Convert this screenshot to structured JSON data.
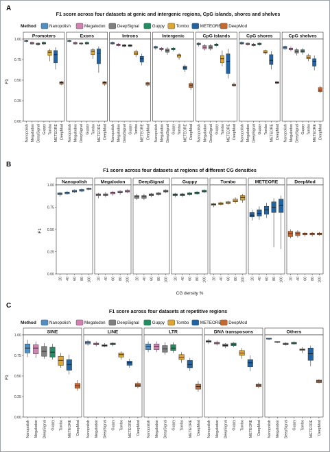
{
  "colors": {
    "Nanopolish": "#4d8fc7",
    "Megalodon": "#d57fb2",
    "DeepSignal": "#808080",
    "Guppy": "#1f8f63",
    "Tombo": "#e0a52a",
    "METEORE": "#1f64a4",
    "DeepMod": "#c8692b"
  },
  "legend": {
    "title": "Method",
    "items": [
      "Nanopolish",
      "Megalodon",
      "DeepSignal",
      "Guppy",
      "Tombo",
      "METEORE",
      "DeepMod"
    ]
  },
  "chart_data": [
    {
      "panel": "A",
      "type": "box",
      "title": "F1 score across four datasets at genic and intergenic regions, CpG islands, shores and shelves",
      "ylabel": "F1",
      "ylim": [
        0,
        1.0
      ],
      "yticks": [
        "0.00",
        "0.25",
        "0.50",
        "0.75",
        "1.00"
      ],
      "categories": [
        "Nanopolish",
        "Megalodon",
        "DeepSignal",
        "Guppy",
        "Tombo",
        "METEORE",
        "DeepMod"
      ],
      "facets": [
        {
          "name": "Promoters",
          "boxes": [
            [
              0.96,
              0.97,
              0.98,
              0.98,
              0.99
            ],
            [
              0.93,
              0.94,
              0.95,
              0.96,
              0.97
            ],
            [
              0.92,
              0.93,
              0.94,
              0.95,
              0.96
            ],
            [
              0.93,
              0.94,
              0.95,
              0.96,
              0.97
            ],
            [
              0.73,
              0.8,
              0.84,
              0.86,
              0.88
            ],
            [
              0.63,
              0.71,
              0.81,
              0.86,
              0.9
            ],
            [
              0.44,
              0.45,
              0.47,
              0.48,
              0.49
            ]
          ]
        },
        {
          "name": "Exons",
          "boxes": [
            [
              0.96,
              0.97,
              0.98,
              0.98,
              0.99
            ],
            [
              0.93,
              0.94,
              0.95,
              0.96,
              0.97
            ],
            [
              0.93,
              0.94,
              0.95,
              0.95,
              0.96
            ],
            [
              0.93,
              0.94,
              0.95,
              0.96,
              0.97
            ],
            [
              0.76,
              0.81,
              0.85,
              0.87,
              0.89
            ],
            [
              0.59,
              0.7,
              0.83,
              0.88,
              0.91
            ],
            [
              0.43,
              0.45,
              0.47,
              0.48,
              0.49
            ]
          ]
        },
        {
          "name": "Introns",
          "boxes": [
            [
              0.93,
              0.94,
              0.95,
              0.96,
              0.97
            ],
            [
              0.91,
              0.92,
              0.93,
              0.94,
              0.95
            ],
            [
              0.9,
              0.91,
              0.92,
              0.93,
              0.94
            ],
            [
              0.9,
              0.91,
              0.92,
              0.93,
              0.94
            ],
            [
              0.78,
              0.81,
              0.83,
              0.85,
              0.87
            ],
            [
              0.68,
              0.72,
              0.76,
              0.79,
              0.82
            ],
            [
              0.42,
              0.44,
              0.46,
              0.47,
              0.48
            ]
          ]
        },
        {
          "name": "Intergenic",
          "boxes": [
            [
              0.87,
              0.89,
              0.9,
              0.91,
              0.92
            ],
            [
              0.85,
              0.87,
              0.88,
              0.89,
              0.9
            ],
            [
              0.81,
              0.84,
              0.86,
              0.88,
              0.9
            ],
            [
              0.85,
              0.87,
              0.88,
              0.89,
              0.9
            ],
            [
              0.75,
              0.78,
              0.8,
              0.81,
              0.83
            ],
            [
              0.6,
              0.63,
              0.65,
              0.67,
              0.69
            ],
            [
              0.38,
              0.41,
              0.44,
              0.46,
              0.48
            ]
          ]
        },
        {
          "name": "CpG islands",
          "boxes": [
            [
              0.91,
              0.93,
              0.94,
              0.95,
              0.96
            ],
            [
              0.86,
              0.88,
              0.9,
              0.92,
              0.94
            ],
            [
              0.86,
              0.88,
              0.9,
              0.92,
              0.94
            ],
            [
              0.91,
              0.92,
              0.93,
              0.94,
              0.95
            ],
            [
              0.67,
              0.71,
              0.76,
              0.8,
              0.86
            ],
            [
              0.52,
              0.58,
              0.73,
              0.82,
              0.88
            ],
            [
              0.42,
              0.43,
              0.44,
              0.45,
              0.47
            ]
          ]
        },
        {
          "name": "CpG shores",
          "boxes": [
            [
              0.93,
              0.94,
              0.95,
              0.96,
              0.97
            ],
            [
              0.92,
              0.93,
              0.94,
              0.95,
              0.96
            ],
            [
              0.91,
              0.92,
              0.93,
              0.94,
              0.95
            ],
            [
              0.92,
              0.93,
              0.94,
              0.95,
              0.96
            ],
            [
              0.81,
              0.83,
              0.84,
              0.86,
              0.87
            ],
            [
              0.63,
              0.69,
              0.74,
              0.81,
              0.85
            ],
            [
              0.45,
              0.46,
              0.47,
              0.48,
              0.49
            ]
          ]
        },
        {
          "name": "CpG shelves",
          "boxes": [
            [
              0.87,
              0.88,
              0.9,
              0.91,
              0.92
            ],
            [
              0.85,
              0.87,
              0.88,
              0.89,
              0.91
            ],
            [
              0.8,
              0.83,
              0.85,
              0.87,
              0.89
            ],
            [
              0.81,
              0.84,
              0.85,
              0.87,
              0.89
            ],
            [
              0.73,
              0.76,
              0.78,
              0.8,
              0.82
            ],
            [
              0.62,
              0.67,
              0.73,
              0.76,
              0.8
            ],
            [
              0.34,
              0.36,
              0.38,
              0.41,
              0.43
            ]
          ]
        }
      ]
    },
    {
      "panel": "B",
      "type": "box",
      "title": "F1 score across four datasets at regions of different CG densities",
      "ylabel": "F1",
      "xlabel": "CG density %",
      "ylim": [
        0,
        1.0
      ],
      "yticks": [
        "0.00",
        "0.25",
        "0.50",
        "0.75",
        "1.00"
      ],
      "categories": [
        "20",
        "40",
        "60",
        "80",
        "100"
      ],
      "facets": [
        {
          "name": "Nanopolish",
          "method": "Nanopolish",
          "boxes": [
            [
              0.87,
              0.89,
              0.9,
              0.91,
              0.92
            ],
            [
              0.89,
              0.9,
              0.91,
              0.92,
              0.93
            ],
            [
              0.91,
              0.92,
              0.93,
              0.94,
              0.95
            ],
            [
              0.92,
              0.93,
              0.94,
              0.95,
              0.96
            ],
            [
              0.94,
              0.95,
              0.96,
              0.96,
              0.97
            ]
          ]
        },
        {
          "name": "Megalodon",
          "method": "Megalodon",
          "boxes": [
            [
              0.85,
              0.88,
              0.89,
              0.9,
              0.91
            ],
            [
              0.86,
              0.88,
              0.89,
              0.9,
              0.92
            ],
            [
              0.88,
              0.9,
              0.91,
              0.92,
              0.93
            ],
            [
              0.89,
              0.91,
              0.92,
              0.93,
              0.94
            ],
            [
              0.91,
              0.92,
              0.93,
              0.94,
              0.95
            ]
          ]
        },
        {
          "name": "DeepSignal",
          "method": "DeepSignal",
          "boxes": [
            [
              0.83,
              0.85,
              0.87,
              0.88,
              0.9
            ],
            [
              0.83,
              0.85,
              0.87,
              0.88,
              0.9
            ],
            [
              0.86,
              0.88,
              0.89,
              0.9,
              0.91
            ],
            [
              0.88,
              0.89,
              0.9,
              0.91,
              0.92
            ],
            [
              0.91,
              0.92,
              0.93,
              0.94,
              0.95
            ]
          ]
        },
        {
          "name": "Guppy",
          "method": "Guppy",
          "boxes": [
            [
              0.86,
              0.88,
              0.89,
              0.9,
              0.91
            ],
            [
              0.86,
              0.88,
              0.89,
              0.9,
              0.91
            ],
            [
              0.88,
              0.89,
              0.9,
              0.91,
              0.92
            ],
            [
              0.89,
              0.9,
              0.91,
              0.92,
              0.93
            ],
            [
              0.91,
              0.92,
              0.93,
              0.94,
              0.95
            ]
          ]
        },
        {
          "name": "Tombo",
          "method": "Tombo",
          "boxes": [
            [
              0.75,
              0.77,
              0.78,
              0.79,
              0.8
            ],
            [
              0.77,
              0.78,
              0.79,
              0.8,
              0.81
            ],
            [
              0.78,
              0.79,
              0.8,
              0.81,
              0.82
            ],
            [
              0.79,
              0.81,
              0.82,
              0.84,
              0.86
            ],
            [
              0.8,
              0.83,
              0.86,
              0.88,
              0.9
            ]
          ]
        },
        {
          "name": "METEORE",
          "method": "METEORE",
          "boxes": [
            [
              0.6,
              0.64,
              0.66,
              0.69,
              0.72
            ],
            [
              0.61,
              0.65,
              0.68,
              0.72,
              0.76
            ],
            [
              0.63,
              0.67,
              0.72,
              0.76,
              0.8
            ],
            [
              0.3,
              0.69,
              0.75,
              0.81,
              0.85
            ],
            [
              0.28,
              0.69,
              0.77,
              0.84,
              0.88
            ]
          ]
        },
        {
          "name": "DeepMod",
          "method": "DeepMod",
          "boxes": [
            [
              0.4,
              0.42,
              0.45,
              0.48,
              0.5
            ],
            [
              0.41,
              0.43,
              0.45,
              0.47,
              0.49
            ],
            [
              0.42,
              0.44,
              0.45,
              0.46,
              0.47
            ],
            [
              0.42,
              0.44,
              0.45,
              0.46,
              0.47
            ],
            [
              0.43,
              0.44,
              0.45,
              0.46,
              0.47
            ]
          ]
        }
      ]
    },
    {
      "panel": "C",
      "type": "box",
      "title": "F1 score across four datasets at repetitive regions",
      "ylabel": "F1",
      "ylim": [
        0,
        1.0
      ],
      "yticks": [
        "0.00",
        "0.25",
        "0.50",
        "0.75",
        "1.00"
      ],
      "categories": [
        "Nanopolish",
        "Megalodon",
        "DeepSignal",
        "Guppy",
        "Tombo",
        "METEORE",
        "DeepMod"
      ],
      "facets": [
        {
          "name": "SINE",
          "boxes": [
            [
              0.73,
              0.78,
              0.84,
              0.89,
              0.94
            ],
            [
              0.72,
              0.77,
              0.84,
              0.88,
              0.92
            ],
            [
              0.71,
              0.74,
              0.8,
              0.86,
              0.9
            ],
            [
              0.7,
              0.73,
              0.79,
              0.85,
              0.89
            ],
            [
              0.6,
              0.63,
              0.69,
              0.74,
              0.78
            ],
            [
              0.52,
              0.57,
              0.64,
              0.7,
              0.76
            ],
            [
              0.32,
              0.35,
              0.38,
              0.41,
              0.45
            ]
          ]
        },
        {
          "name": "LINE",
          "boxes": [
            [
              0.87,
              0.89,
              0.91,
              0.92,
              0.94
            ],
            [
              0.86,
              0.88,
              0.89,
              0.9,
              0.92
            ],
            [
              0.85,
              0.86,
              0.87,
              0.88,
              0.9
            ],
            [
              0.86,
              0.88,
              0.89,
              0.9,
              0.91
            ],
            [
              0.7,
              0.73,
              0.76,
              0.78,
              0.8
            ],
            [
              0.6,
              0.63,
              0.66,
              0.68,
              0.71
            ],
            [
              0.35,
              0.37,
              0.39,
              0.41,
              0.43
            ]
          ]
        },
        {
          "name": "LTR",
          "boxes": [
            [
              0.79,
              0.82,
              0.86,
              0.89,
              0.92
            ],
            [
              0.79,
              0.82,
              0.86,
              0.89,
              0.92
            ],
            [
              0.76,
              0.79,
              0.83,
              0.87,
              0.91
            ],
            [
              0.78,
              0.81,
              0.84,
              0.88,
              0.91
            ],
            [
              0.66,
              0.7,
              0.73,
              0.76,
              0.79
            ],
            [
              0.56,
              0.6,
              0.64,
              0.69,
              0.72
            ],
            [
              0.31,
              0.34,
              0.37,
              0.4,
              0.44
            ]
          ]
        },
        {
          "name": "DNA transposons",
          "boxes": [
            [
              0.89,
              0.91,
              0.92,
              0.93,
              0.95
            ],
            [
              0.87,
              0.89,
              0.9,
              0.91,
              0.93
            ],
            [
              0.84,
              0.86,
              0.87,
              0.89,
              0.9
            ],
            [
              0.85,
              0.87,
              0.88,
              0.9,
              0.91
            ],
            [
              0.71,
              0.75,
              0.78,
              0.81,
              0.84
            ],
            [
              0.56,
              0.61,
              0.66,
              0.7,
              0.75
            ],
            [
              0.35,
              0.37,
              0.39,
              0.4,
              0.42
            ]
          ]
        },
        {
          "name": "Others",
          "boxes": [
            [
              0.94,
              0.95,
              0.95,
              0.96,
              0.96
            ],
            [
              0.9,
              0.91,
              0.91,
              0.92,
              0.92
            ],
            [
              0.87,
              0.88,
              0.89,
              0.9,
              0.91
            ],
            [
              0.88,
              0.89,
              0.9,
              0.91,
              0.92
            ],
            [
              0.78,
              0.81,
              0.82,
              0.83,
              0.85
            ],
            [
              0.62,
              0.69,
              0.77,
              0.84,
              0.87
            ],
            [
              0.41,
              0.42,
              0.44,
              0.45,
              0.46
            ]
          ]
        }
      ]
    }
  ]
}
